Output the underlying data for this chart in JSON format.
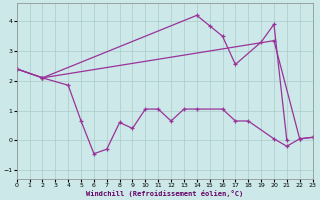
{
  "xlabel": "Windchill (Refroidissement éolien,°C)",
  "xlim": [
    0,
    23
  ],
  "ylim": [
    -1.3,
    4.6
  ],
  "xticks": [
    0,
    1,
    2,
    3,
    4,
    5,
    6,
    7,
    8,
    9,
    10,
    11,
    12,
    13,
    14,
    15,
    16,
    17,
    18,
    19,
    20,
    21,
    22,
    23
  ],
  "yticks": [
    -1,
    0,
    1,
    2,
    3,
    4
  ],
  "bg_color": "#cce8e8",
  "line_color": "#993399",
  "line1_x": [
    0,
    2,
    14,
    15,
    16,
    17,
    19,
    20,
    21
  ],
  "line1_y": [
    2.4,
    2.1,
    4.2,
    3.85,
    3.5,
    2.55,
    3.3,
    3.9,
    0.0
  ],
  "line2_x": [
    0,
    2,
    20,
    22,
    23
  ],
  "line2_y": [
    2.4,
    2.1,
    3.35,
    0.05,
    0.1
  ],
  "line3_x": [
    0,
    2,
    4,
    5,
    6,
    7,
    8,
    9,
    10,
    11,
    12,
    13,
    14,
    16,
    17,
    18,
    20,
    21,
    22,
    23
  ],
  "line3_y": [
    2.4,
    2.1,
    1.85,
    0.65,
    -0.45,
    -0.3,
    0.6,
    0.4,
    1.05,
    1.05,
    0.65,
    1.05,
    1.05,
    1.05,
    0.65,
    0.65,
    0.05,
    -0.2,
    0.05,
    0.1
  ]
}
